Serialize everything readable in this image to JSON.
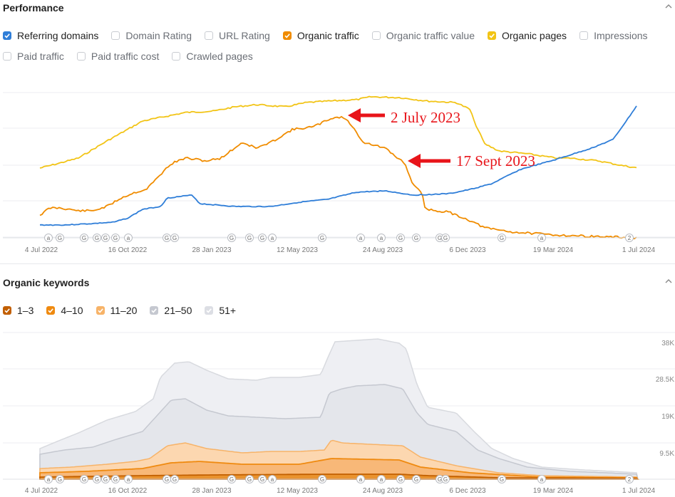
{
  "performance": {
    "title": "Performance",
    "checkboxes_row1": [
      {
        "label": "Referring domains",
        "checked": true,
        "color": "#2f7ed8"
      },
      {
        "label": "Domain Rating",
        "checked": false,
        "color": ""
      },
      {
        "label": "URL Rating",
        "checked": false,
        "color": ""
      },
      {
        "label": "Organic traffic",
        "checked": true,
        "color": "#f08c00"
      },
      {
        "label": "Organic traffic value",
        "checked": false,
        "color": ""
      },
      {
        "label": "Organic pages",
        "checked": true,
        "color": "#f2c416"
      },
      {
        "label": "Impressions",
        "checked": false,
        "color": ""
      }
    ],
    "checkboxes_row2": [
      {
        "label": "Paid traffic",
        "checked": false,
        "color": ""
      },
      {
        "label": "Paid traffic cost",
        "checked": false,
        "color": ""
      },
      {
        "label": "Crawled pages",
        "checked": false,
        "color": ""
      }
    ],
    "annotations": [
      {
        "text": "2 July 2023"
      },
      {
        "text": "17 Sept 2023"
      }
    ],
    "x_ticks": [
      "4 Jul 2022",
      "16 Oct 2022",
      "28 Jan 2023",
      "12 May 2023",
      "24 Aug 2023",
      "6 Dec 2023",
      "19 Mar 2024",
      "1 Jul 2024"
    ],
    "event_markers": [
      "a",
      "G",
      "G",
      "G",
      "G",
      "G",
      "a",
      "G",
      "G",
      "G",
      "G",
      "G",
      "a",
      "G",
      "a",
      "a",
      "G",
      "G",
      "G",
      "G",
      "G",
      "a",
      "2",
      "G"
    ]
  },
  "keywords": {
    "title": "Organic keywords",
    "checkboxes": [
      {
        "label": "1–3",
        "checked": true,
        "color": "#c25f00"
      },
      {
        "label": "4–10",
        "checked": true,
        "color": "#ef8a10"
      },
      {
        "label": "11–20",
        "checked": true,
        "color": "#f7b368"
      },
      {
        "label": "21–50",
        "checked": true,
        "color": "#c5c8d0"
      },
      {
        "label": "51+",
        "checked": true,
        "color": "#dcdee4"
      }
    ],
    "y_ticks": [
      "38K",
      "28.5K",
      "19K",
      "9.5K",
      "0"
    ],
    "x_ticks": [
      "4 Jul 2022",
      "16 Oct 2022",
      "28 Jan 2023",
      "12 May 2023",
      "24 Aug 2023",
      "6 Dec 2023",
      "19 Mar 2024",
      "1 Jul 2024"
    ],
    "event_markers": [
      "a",
      "G",
      "G",
      "G",
      "G",
      "G",
      "a",
      "G",
      "G",
      "G",
      "G",
      "G",
      "a",
      "G",
      "a",
      "a",
      "G",
      "G",
      "G",
      "G",
      "G",
      "a",
      "2",
      "G"
    ]
  },
  "colors": {
    "accent_blue": "#2f7ed8",
    "orange": "#f08c00",
    "yellow": "#f2c416",
    "annotation_red": "#e8141a"
  },
  "icons": {
    "collapse": "chevron-up-icon",
    "check": "check-icon",
    "arrow": "arrow-left-icon"
  }
}
